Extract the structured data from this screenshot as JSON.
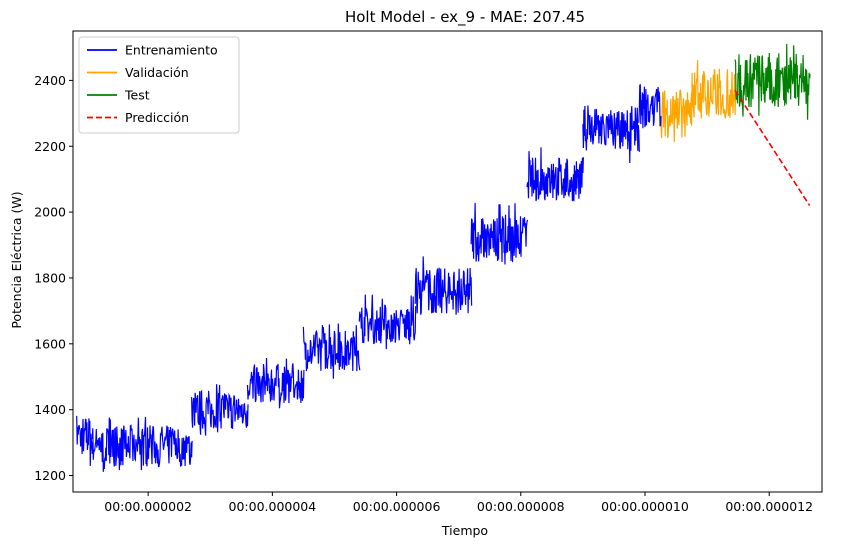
{
  "chart_data": {
    "type": "line",
    "title": "Holt Model - ex_9 - MAE: 207.45",
    "xlabel": "Tiempo",
    "ylabel": "Potencia Eléctrica (W)",
    "x_unit": "microseconds",
    "xlim": [
      0.79,
      12.85
    ],
    "ylim": [
      1150,
      2550
    ],
    "x_ticks": [
      {
        "value": 2,
        "label": "00:00.000002"
      },
      {
        "value": 4,
        "label": "00:00.000004"
      },
      {
        "value": 6,
        "label": "00:00.000006"
      },
      {
        "value": 8,
        "label": "00:00.000008"
      },
      {
        "value": 10,
        "label": "00:00.000010"
      },
      {
        "value": 12,
        "label": "00:00.000012"
      }
    ],
    "y_ticks": [
      1200,
      1400,
      1600,
      1800,
      2000,
      2200,
      2400
    ],
    "grid": false,
    "legend_position": "top-left",
    "series": [
      {
        "name": "Entrenamiento",
        "color": "#0000ff",
        "style": "solid",
        "segments": [
          {
            "x0": 0.85,
            "x1": 1.1,
            "center": 1320,
            "low": 1225,
            "high": 1395
          },
          {
            "x0": 1.1,
            "x1": 2.7,
            "center": 1290,
            "low": 1205,
            "high": 1380
          },
          {
            "x0": 2.7,
            "x1": 3.6,
            "center": 1400,
            "low": 1320,
            "high": 1490
          },
          {
            "x0": 3.6,
            "x1": 4.5,
            "center": 1480,
            "low": 1400,
            "high": 1570
          },
          {
            "x0": 4.5,
            "x1": 5.4,
            "center": 1580,
            "low": 1490,
            "high": 1665
          },
          {
            "x0": 5.4,
            "x1": 6.3,
            "center": 1660,
            "low": 1580,
            "high": 1750
          },
          {
            "x0": 6.3,
            "x1": 7.2,
            "center": 1760,
            "low": 1680,
            "high": 1880
          },
          {
            "x0": 7.2,
            "x1": 8.1,
            "center": 1920,
            "low": 1830,
            "high": 2030
          },
          {
            "x0": 8.1,
            "x1": 9.0,
            "center": 2100,
            "low": 2010,
            "high": 2200
          },
          {
            "x0": 9.0,
            "x1": 9.9,
            "center": 2250,
            "low": 2140,
            "high": 2330
          },
          {
            "x0": 9.9,
            "x1": 10.26,
            "center": 2320,
            "low": 2220,
            "high": 2410
          }
        ]
      },
      {
        "name": "Validación",
        "color": "#ffa500",
        "style": "solid",
        "segments": [
          {
            "x0": 10.26,
            "x1": 10.75,
            "center": 2300,
            "low": 2200,
            "high": 2410
          },
          {
            "x0": 10.75,
            "x1": 11.45,
            "center": 2360,
            "low": 2260,
            "high": 2475
          }
        ]
      },
      {
        "name": "Test",
        "color": "#008000",
        "style": "solid",
        "segments": [
          {
            "x0": 11.45,
            "x1": 12.65,
            "center": 2400,
            "low": 2280,
            "high": 2515
          }
        ]
      },
      {
        "name": "Predicción",
        "color": "#ff0000",
        "style": "dashed",
        "x": [
          11.45,
          12.65
        ],
        "y": [
          2370,
          2020
        ]
      }
    ]
  }
}
